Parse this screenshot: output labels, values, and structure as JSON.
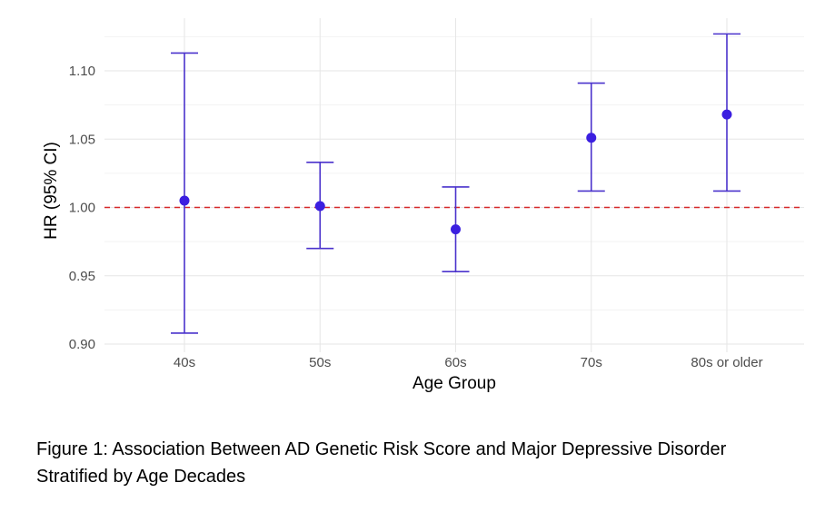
{
  "chart_data": {
    "type": "scatter",
    "subtype": "point-with-error-bars",
    "xlabel": "Age Group",
    "ylabel": "HR (95% CI)",
    "categories": [
      "40s",
      "50s",
      "60s",
      "70s",
      "80s or older"
    ],
    "series": [
      {
        "values": [
          1.005,
          1.001,
          0.984,
          1.051,
          1.068
        ],
        "lower": [
          0.908,
          0.97,
          0.953,
          1.012,
          1.012
        ],
        "upper": [
          1.113,
          1.033,
          1.015,
          1.091,
          1.127
        ]
      }
    ],
    "ylim": [
      0.9,
      1.13
    ],
    "yticks": [
      0.9,
      0.95,
      1.0,
      1.05,
      1.1
    ],
    "ytick_labels": [
      "0.90",
      "0.95",
      "1.00",
      "1.05",
      "1.10"
    ],
    "reference_line": {
      "y": 1.0,
      "style": "dashed",
      "color": "#d62728"
    },
    "grid": true,
    "point_color": "#3b1fe0",
    "errorbar_color": "#4a32cc"
  },
  "caption": "Figure 1: Association Between AD Genetic Risk Score and Major Depressive Disorder Stratified by Age Decades"
}
